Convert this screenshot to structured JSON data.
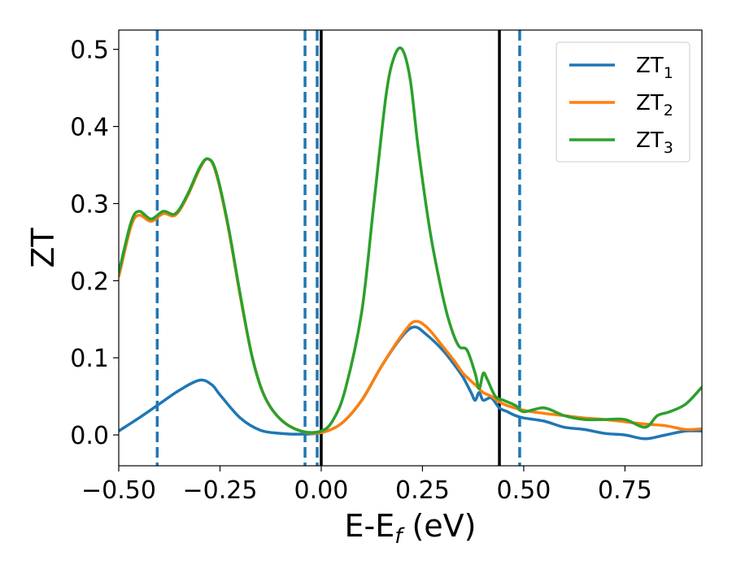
{
  "chart_data": {
    "type": "line",
    "xlabel": "E-E",
    "xlabel_sub": "f",
    "xlabel_unit": " (eV)",
    "ylabel": "ZT",
    "xlim": [
      -0.5,
      0.94
    ],
    "ylim": [
      -0.04,
      0.525
    ],
    "xticks": [
      {
        "value": -0.5,
        "label": "−0.50"
      },
      {
        "value": -0.25,
        "label": "−0.25"
      },
      {
        "value": 0.0,
        "label": "0.00"
      },
      {
        "value": 0.25,
        "label": "0.25"
      },
      {
        "value": 0.5,
        "label": "0.50"
      },
      {
        "value": 0.75,
        "label": "0.75"
      }
    ],
    "yticks": [
      {
        "value": 0.0,
        "label": "0.0"
      },
      {
        "value": 0.1,
        "label": "0.1"
      },
      {
        "value": 0.2,
        "label": "0.2"
      },
      {
        "value": 0.3,
        "label": "0.3"
      },
      {
        "value": 0.4,
        "label": "0.4"
      },
      {
        "value": 0.5,
        "label": "0.5"
      }
    ],
    "grid": false,
    "legend_position": "top-right",
    "vlines_dashed": {
      "color": "#1f77b4",
      "x": [
        -0.405,
        -0.04,
        -0.01,
        0.49
      ]
    },
    "vlines_solid": {
      "color": "#000000",
      "x": [
        0.0,
        0.44
      ]
    },
    "series": [
      {
        "name": "ZT",
        "subscript": "1",
        "color": "#1f77b4",
        "x": [
          -0.5,
          -0.45,
          -0.4,
          -0.35,
          -0.3,
          -0.27,
          -0.25,
          -0.2,
          -0.15,
          -0.1,
          -0.05,
          0.0,
          0.05,
          0.1,
          0.15,
          0.2,
          0.23,
          0.26,
          0.3,
          0.33,
          0.35,
          0.37,
          0.38,
          0.39,
          0.4,
          0.42,
          0.44,
          0.46,
          0.48,
          0.5,
          0.55,
          0.6,
          0.65,
          0.7,
          0.75,
          0.8,
          0.85,
          0.9,
          0.94
        ],
        "y": [
          0.005,
          0.022,
          0.04,
          0.058,
          0.071,
          0.065,
          0.052,
          0.022,
          0.006,
          0.002,
          0.001,
          0.003,
          0.015,
          0.045,
          0.09,
          0.128,
          0.14,
          0.13,
          0.11,
          0.09,
          0.075,
          0.055,
          0.045,
          0.055,
          0.045,
          0.048,
          0.035,
          0.03,
          0.025,
          0.022,
          0.018,
          0.01,
          0.007,
          0.002,
          0.0,
          -0.005,
          0.0,
          0.005,
          0.005
        ]
      },
      {
        "name": "ZT",
        "subscript": "2",
        "color": "#ff7f0e",
        "x": [
          -0.5,
          -0.47,
          -0.45,
          -0.42,
          -0.39,
          -0.36,
          -0.33,
          -0.3,
          -0.28,
          -0.26,
          -0.23,
          -0.2,
          -0.17,
          -0.14,
          -0.1,
          -0.05,
          0.0,
          0.05,
          0.1,
          0.15,
          0.2,
          0.23,
          0.26,
          0.3,
          0.33,
          0.35,
          0.38,
          0.4,
          0.42,
          0.45,
          0.5,
          0.55,
          0.6,
          0.65,
          0.7,
          0.75,
          0.8,
          0.85,
          0.9,
          0.94
        ],
        "y": [
          0.205,
          0.27,
          0.285,
          0.277,
          0.287,
          0.285,
          0.31,
          0.345,
          0.358,
          0.34,
          0.27,
          0.18,
          0.1,
          0.05,
          0.02,
          0.005,
          0.003,
          0.015,
          0.045,
          0.09,
          0.13,
          0.147,
          0.14,
          0.115,
          0.095,
          0.08,
          0.065,
          0.055,
          0.05,
          0.04,
          0.032,
          0.028,
          0.025,
          0.022,
          0.02,
          0.017,
          0.014,
          0.012,
          0.007,
          0.008
        ]
      },
      {
        "name": "ZT",
        "subscript": "3",
        "color": "#2ca02c",
        "x": [
          -0.5,
          -0.47,
          -0.45,
          -0.42,
          -0.39,
          -0.36,
          -0.33,
          -0.3,
          -0.28,
          -0.26,
          -0.23,
          -0.2,
          -0.17,
          -0.14,
          -0.1,
          -0.05,
          0.0,
          0.03,
          0.06,
          0.1,
          0.13,
          0.16,
          0.18,
          0.2,
          0.22,
          0.24,
          0.27,
          0.3,
          0.32,
          0.34,
          0.36,
          0.38,
          0.39,
          0.4,
          0.41,
          0.43,
          0.45,
          0.48,
          0.5,
          0.55,
          0.6,
          0.65,
          0.7,
          0.75,
          0.8,
          0.83,
          0.86,
          0.9,
          0.94
        ],
        "y": [
          0.21,
          0.275,
          0.29,
          0.28,
          0.29,
          0.287,
          0.312,
          0.347,
          0.358,
          0.342,
          0.272,
          0.182,
          0.1,
          0.05,
          0.02,
          0.005,
          0.005,
          0.02,
          0.06,
          0.16,
          0.3,
          0.44,
          0.49,
          0.5,
          0.46,
          0.37,
          0.26,
          0.18,
          0.14,
          0.115,
          0.11,
          0.08,
          0.06,
          0.08,
          0.072,
          0.05,
          0.045,
          0.038,
          0.03,
          0.035,
          0.025,
          0.02,
          0.02,
          0.02,
          0.01,
          0.025,
          0.03,
          0.04,
          0.062
        ]
      }
    ]
  }
}
